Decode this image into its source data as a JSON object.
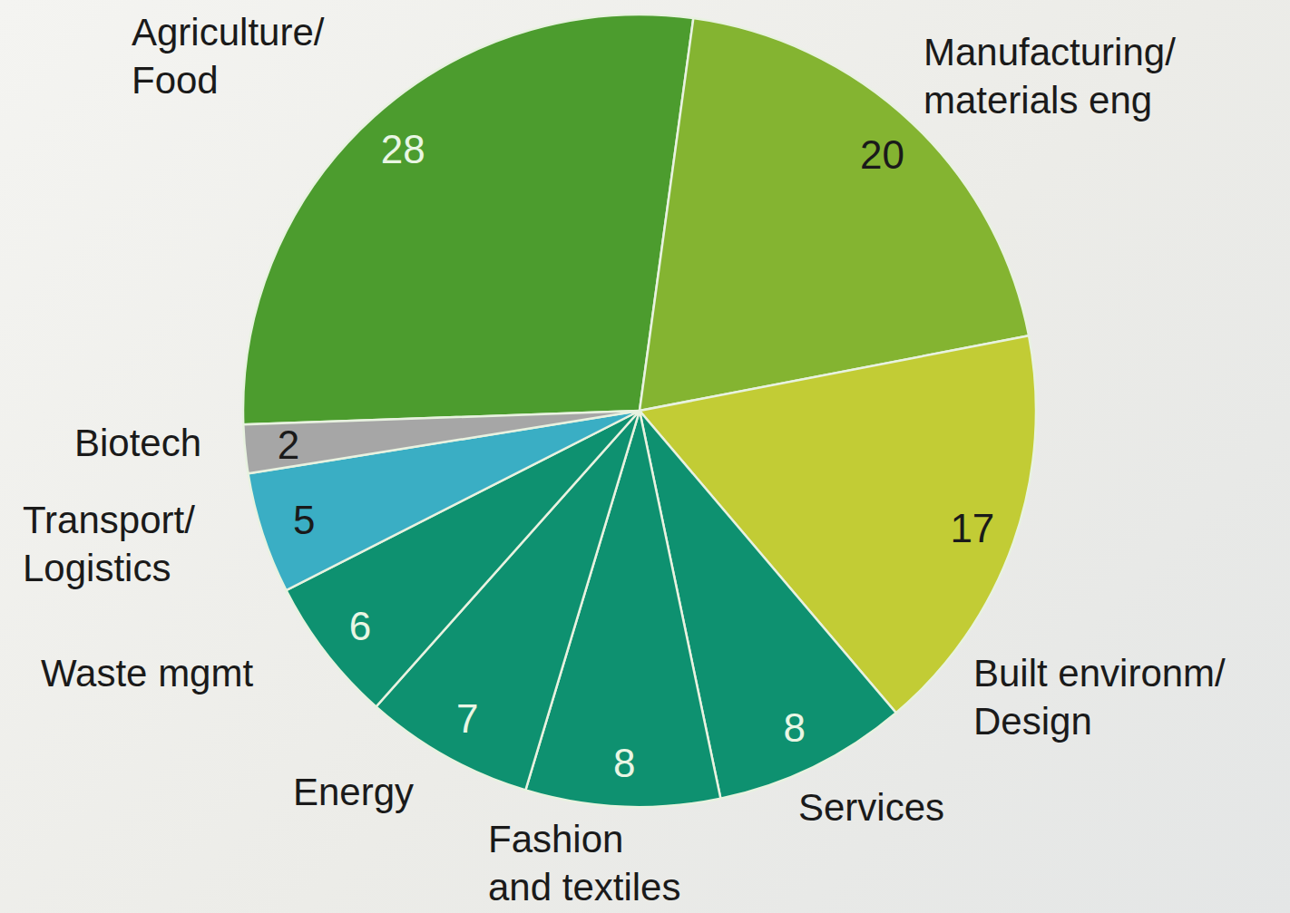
{
  "chart_data": {
    "type": "pie",
    "categories": [
      "Agriculture/ Food",
      "Manufacturing/ materials eng",
      "Built environm/ Design",
      "Services",
      "Fashion and textiles",
      "Energy",
      "Waste mgmt",
      "Transport/ Logistics",
      "Biotech"
    ],
    "values": [
      28,
      20,
      17,
      8,
      8,
      7,
      6,
      5,
      2
    ],
    "colors": [
      "#4c9c2e",
      "#84b431",
      "#c2cc35",
      "#0e9170",
      "#0e9170",
      "#0e9170",
      "#0e9170",
      "#3aaec4",
      "#a6a6a6"
    ],
    "data_labels": true
  }
}
